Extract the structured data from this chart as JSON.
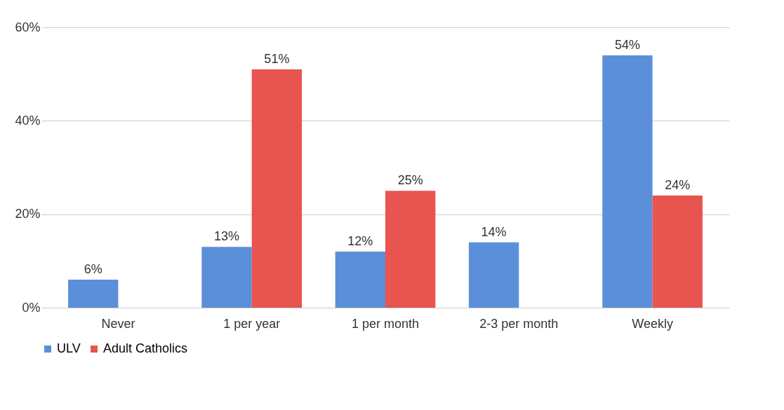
{
  "chart_data": {
    "type": "bar",
    "categories": [
      "Never",
      "1 per year",
      "1 per month",
      "2-3 per month",
      "Weekly"
    ],
    "series": [
      {
        "name": "ULV",
        "color": "#5b8fd9",
        "values": [
          6,
          13,
          12,
          14,
          54
        ],
        "value_labels": [
          "6%",
          "13%",
          "12%",
          "14%",
          "54%"
        ]
      },
      {
        "name": "Adult Catholics",
        "color": "#e8544f",
        "values": [
          null,
          51,
          25,
          null,
          24
        ],
        "value_labels": [
          null,
          "51%",
          "25%",
          null,
          "24%"
        ]
      }
    ],
    "ylim": [
      0,
      60
    ],
    "yticks": [
      {
        "value": 0,
        "label": "0%"
      },
      {
        "value": 20,
        "label": "20%"
      },
      {
        "value": 40,
        "label": "40%"
      },
      {
        "value": 60,
        "label": "60%"
      }
    ],
    "grid": "y",
    "legend": "bottom"
  }
}
